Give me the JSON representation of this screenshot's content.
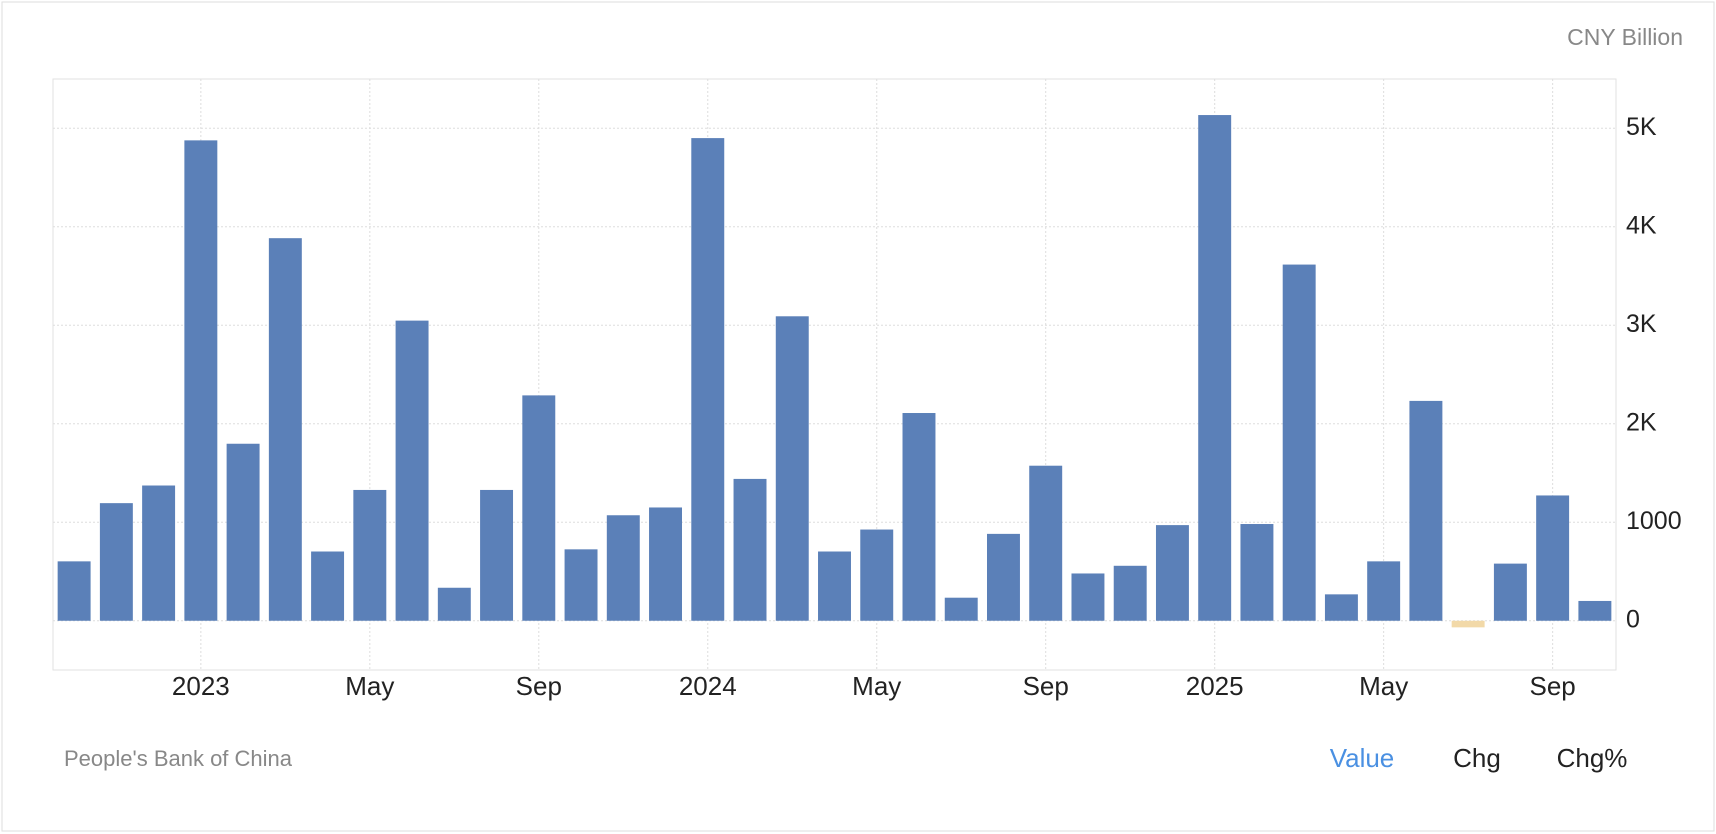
{
  "unit": "CNY Billion",
  "source": "People's Bank of China",
  "tabs": {
    "items": [
      "Value",
      "Chg",
      "Chg%"
    ],
    "active": 0
  },
  "chart_data": {
    "type": "bar",
    "categories": [
      null,
      null,
      null,
      "2023",
      null,
      null,
      null,
      "May",
      null,
      null,
      null,
      "Sep",
      null,
      null,
      null,
      "2024",
      null,
      null,
      null,
      "May",
      null,
      null,
      null,
      "Sep",
      null,
      null,
      null,
      "2025",
      null,
      null,
      null,
      "May",
      null,
      null,
      null,
      "Sep",
      null
    ],
    "values": [
      603,
      1194,
      1373,
      4877,
      1797,
      3884,
      703,
      1328,
      3047,
      335,
      1328,
      2288,
      725,
      1071,
      1150,
      4900,
      1440,
      3091,
      703,
      926,
      2109,
      234,
      882,
      1574,
      480,
      558,
      971,
      5134,
      982,
      3616,
      268,
      603,
      2232,
      -67,
      580,
      1272,
      201
    ],
    "color": "#5b80b8",
    "negative_color": "#f2d9a8",
    "ylim": [
      -500,
      5500
    ],
    "yticks": [
      0,
      1000,
      {
        "value": 2000,
        "label": "2K"
      },
      {
        "value": 3000,
        "label": "3K"
      },
      {
        "value": 4000,
        "label": "4K"
      },
      {
        "value": 5000,
        "label": "5K"
      }
    ],
    "grid": true
  }
}
